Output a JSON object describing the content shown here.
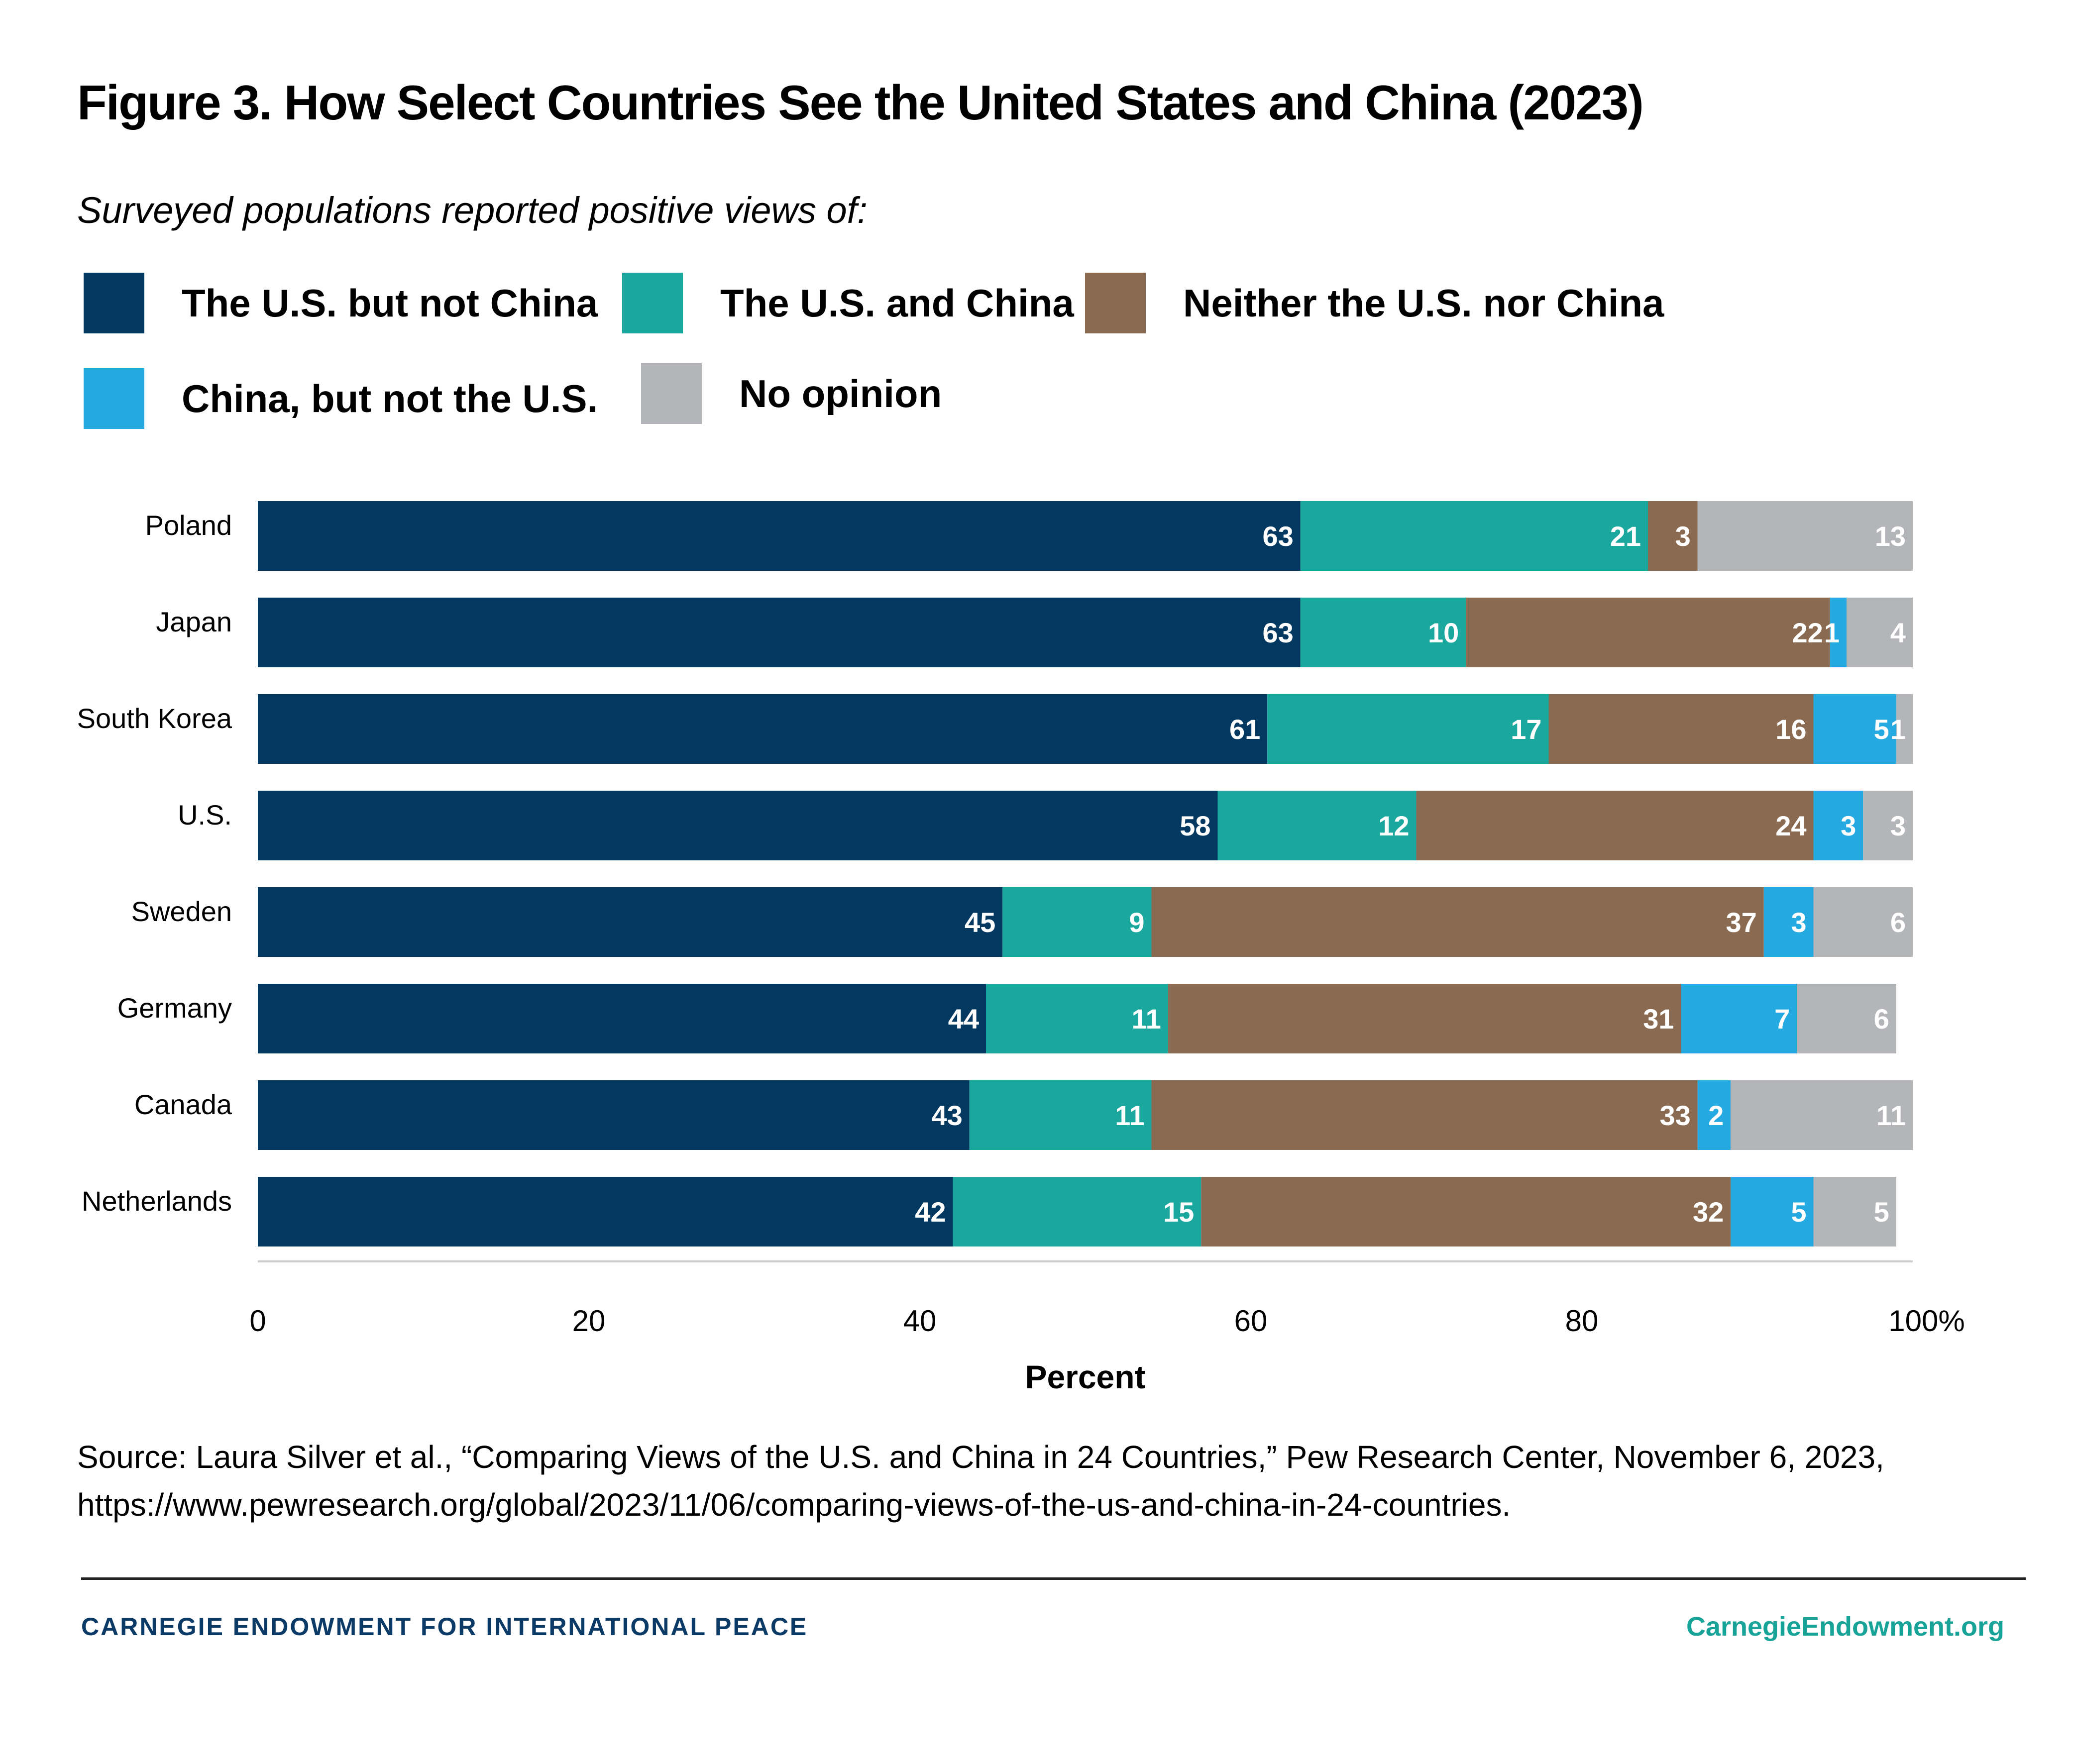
{
  "header": {
    "title": "Figure 3. How Select Countries See the United States and China (2023)",
    "subtitle": "Surveyed populations reported positive views of:"
  },
  "legend": [
    {
      "label": "The U.S. but not China",
      "color": "#033860"
    },
    {
      "label": "The U.S. and China",
      "color": "#1aa89e"
    },
    {
      "label": "Neither the U.S. nor China",
      "color": "#8a6b51"
    },
    {
      "label": "China, but not the U.S.",
      "color": "#24a9e1"
    },
    {
      "label": "No opinion",
      "color": "#b4b5b8"
    }
  ],
  "chart_data": {
    "type": "bar",
    "orientation": "horizontal",
    "stacked": true,
    "title": "Figure 3. How Select Countries See the United States and China (2023)",
    "subtitle": "Surveyed populations reported positive views of:",
    "xlabel": "Percent",
    "ylabel": "",
    "xlim": [
      0,
      100
    ],
    "xticks": [
      "0",
      "20",
      "40",
      "60",
      "80",
      "100%"
    ],
    "grid": false,
    "legend_position": "top",
    "categories": [
      "Poland",
      "Japan",
      "South Korea",
      "U.S.",
      "Sweden",
      "Germany",
      "Canada",
      "Netherlands"
    ],
    "series": [
      {
        "name": "The U.S. but not China",
        "color": "#033860",
        "values": [
          63,
          63,
          61,
          58,
          45,
          44,
          43,
          42
        ]
      },
      {
        "name": "The U.S. and China",
        "color": "#1aa89e",
        "values": [
          21,
          10,
          17,
          12,
          9,
          11,
          11,
          15
        ]
      },
      {
        "name": "Neither the U.S. nor China",
        "color": "#8a6b51",
        "values": [
          3,
          22,
          16,
          24,
          37,
          31,
          33,
          32
        ]
      },
      {
        "name": "China, but not the U.S.",
        "color": "#24a9e1",
        "values": [
          0,
          1,
          5,
          3,
          3,
          7,
          2,
          5
        ]
      },
      {
        "name": "No opinion",
        "color": "#b4b5b8",
        "values": [
          13,
          4,
          1,
          3,
          6,
          6,
          11,
          5
        ]
      }
    ]
  },
  "source": "Source: Laura Silver et al., “Comparing Views of the U.S. and China in 24 Countries,” Pew Research Center, November 6, 2023, https://www.pewresearch.org/global/2023/11/06/comparing-views-of-the-us-and-china-in-24-countries.",
  "footer": {
    "organization": "CARNEGIE ENDOWMENT FOR INTERNATIONAL PEACE",
    "website": "CarnegieEndowment.org"
  }
}
